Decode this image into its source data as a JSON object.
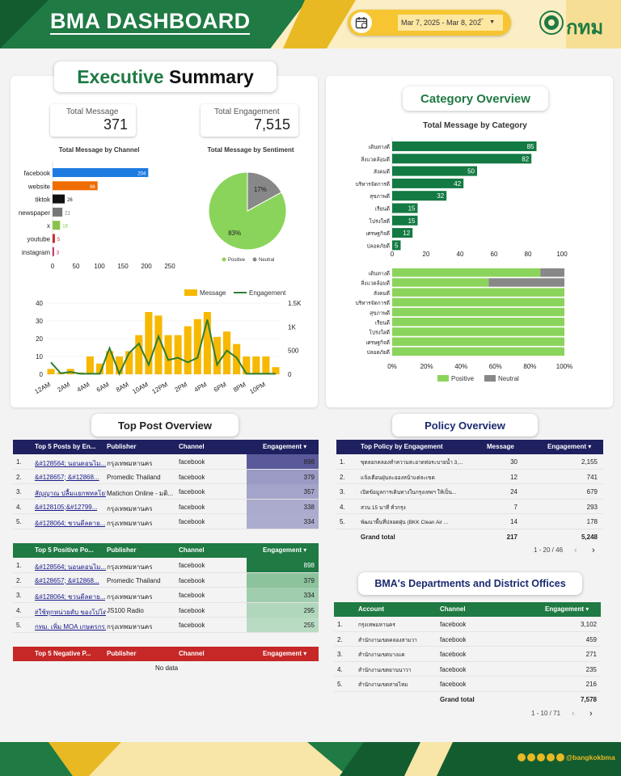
{
  "header": {
    "title": "BMA DASHBOARD",
    "date_range": "Mar 7, 2025 - Mar 8, 202̅",
    "logo_text": "กทม"
  },
  "footer": {
    "handle": "@bangkokbma"
  },
  "executive": {
    "title_part1": "Executive",
    "title_part2": "Summary",
    "total_message_label": "Total Message",
    "total_message_value": "371",
    "total_engagement_label": "Total Engagement",
    "total_engagement_value": "7,515",
    "channel_title": "Total Message by Channel",
    "sentiment_title": "Total Message by Sentiment",
    "legend_positive": "Positive",
    "legend_neutral": "Neutral",
    "legend_message": "Message",
    "legend_engagement": "Engagement"
  },
  "category": {
    "title": "Category Overview",
    "subtitle": "Total Message by Category",
    "legend_positive": "Positive",
    "legend_neutral": "Neutral"
  },
  "chart_data": [
    {
      "type": "bar",
      "orientation": "horizontal",
      "title": "Total Message by Channel",
      "categories": [
        "facebook",
        "website",
        "tiktok",
        "newspaper",
        "x",
        "youtube",
        "instagram"
      ],
      "values": [
        204,
        96,
        26,
        21,
        16,
        5,
        3
      ],
      "colors": [
        "#1e7be0",
        "#ef6c00",
        "#111111",
        "#777777",
        "#8bc34a",
        "#c62828",
        "#c2185b"
      ],
      "xlim": [
        0,
        250
      ],
      "xticks": [
        "0",
        "50",
        "100",
        "150",
        "200",
        "250"
      ]
    },
    {
      "type": "pie",
      "title": "Total Message by Sentiment",
      "categories": [
        "Positive",
        "Neutral"
      ],
      "values": [
        83,
        17
      ],
      "colors": [
        "#8bd45b",
        "#888888"
      ]
    },
    {
      "type": "bar",
      "subtype": "combo",
      "title": "",
      "categories": [
        "12AM",
        "1AM",
        "2AM",
        "3AM",
        "4AM",
        "5AM",
        "6AM",
        "7AM",
        "8AM",
        "9AM",
        "10AM",
        "11AM",
        "12PM",
        "1PM",
        "2PM",
        "3PM",
        "4PM",
        "5PM",
        "6PM",
        "7PM",
        "8PM",
        "9PM",
        "10PM",
        "11PM"
      ],
      "x_tick_labels": [
        "12AM",
        "2AM",
        "4AM",
        "6AM",
        "8AM",
        "10AM",
        "12PM",
        "2PM",
        "4PM",
        "6PM",
        "8PM",
        "10PM"
      ],
      "series": [
        {
          "name": "Message",
          "type": "bar",
          "axis": "left",
          "values": [
            3,
            1,
            3,
            1,
            10,
            6,
            13,
            10,
            13,
            22,
            35,
            33,
            22,
            22,
            27,
            31,
            35,
            21,
            24,
            17,
            10,
            10,
            10,
            4
          ]
        },
        {
          "name": "Engagement",
          "type": "line",
          "axis": "right",
          "values": [
            250,
            20,
            50,
            10,
            10,
            10,
            550,
            10,
            450,
            650,
            200,
            800,
            300,
            350,
            250,
            350,
            1150,
            200,
            500,
            350,
            10,
            10,
            10,
            10
          ]
        }
      ],
      "ylim_left": [
        0,
        40
      ],
      "yticks_left": [
        "0",
        "10",
        "20",
        "30",
        "40"
      ],
      "ylim_right": [
        0,
        1500
      ],
      "yticks_right": [
        "0",
        "500",
        "1K",
        "1.5K"
      ],
      "colors": {
        "Message": "#f7b800",
        "Engagement": "#2e7d32"
      }
    },
    {
      "type": "bar",
      "orientation": "horizontal",
      "title": "Total Message by Category",
      "categories": [
        "เดินทางดี",
        "สิ่งแวดล้อมดี",
        "สังคมดี",
        "บริหารจัดการดี",
        "สุขภาพดี",
        "เรียนดี",
        "โปร่งใสดี",
        "เศรษฐกิจดี",
        "ปลอดภัยดี"
      ],
      "values": [
        85,
        82,
        50,
        42,
        32,
        15,
        15,
        12,
        5
      ],
      "xlim": [
        0,
        100
      ],
      "xticks": [
        "0",
        "20",
        "40",
        "60",
        "80",
        "100"
      ],
      "color": "#137a43"
    },
    {
      "type": "bar",
      "orientation": "horizontal",
      "stacked": "percent",
      "title": "",
      "categories": [
        "เดินทางดี",
        "สิ่งแวดล้อมดี",
        "สังคมดี",
        "บริหารจัดการดี",
        "สุขภาพดี",
        "เรียนดี",
        "โปร่งใสดี",
        "เศรษฐกิจดี",
        "ปลอดภัยดี"
      ],
      "series": [
        {
          "name": "Positive",
          "values": [
            86,
            56,
            100,
            100,
            100,
            100,
            100,
            100,
            100
          ]
        },
        {
          "name": "Neutral",
          "values": [
            14,
            44,
            0,
            0,
            0,
            0,
            0,
            0,
            0
          ]
        }
      ],
      "xticks": [
        "0%",
        "20%",
        "40%",
        "60%",
        "80%",
        "100%"
      ],
      "colors": {
        "Positive": "#8bd45b",
        "Neutral": "#888888"
      }
    }
  ],
  "top_post": {
    "title": "Top Post Overview",
    "top5_posts": {
      "headers": [
        "Top 5 Posts by En...",
        "Publisher",
        "Channel",
        "Engagement ▾"
      ],
      "rows": [
        {
          "n": "1.",
          "post": "&#128564; นอนดอนไม...",
          "pub": "กรุงเทพมหานคร",
          "ch": "facebook",
          "eng": "898"
        },
        {
          "n": "2.",
          "post": "&#128657; &#12868...",
          "pub": "Promedic Thailand",
          "ch": "facebook",
          "eng": "379"
        },
        {
          "n": "3.",
          "post": "สัญญาณ ปลื้มแยกพหลโยธิ...",
          "pub": "Matichon Online - มติ...",
          "ch": "facebook",
          "eng": "357"
        },
        {
          "n": "4.",
          "post": "&#128105;&#12799...",
          "pub": "กรุงเทพมหานคร",
          "ch": "facebook",
          "eng": "338"
        },
        {
          "n": "5.",
          "post": "&#128064; ชวนดีลดาย...",
          "pub": "กรุงเทพมหานคร",
          "ch": "facebook",
          "eng": "334"
        }
      ]
    },
    "top5_positive": {
      "headers": [
        "Top 5 Positive Po...",
        "Publisher",
        "Channel",
        "Engagement ▾"
      ],
      "rows": [
        {
          "n": "1.",
          "post": "&#128564; นอนดอนไม...",
          "pub": "กรุงเทพมหานคร",
          "ch": "facebook",
          "eng": "898"
        },
        {
          "n": "2.",
          "post": "&#128657; &#12868...",
          "pub": "Promedic Thailand",
          "ch": "facebook",
          "eng": "379"
        },
        {
          "n": "3.",
          "post": "&#128064; ชวนดีลดาย...",
          "pub": "กรุงเทพมหานคร",
          "ch": "facebook",
          "eng": "334"
        },
        {
          "n": "4.",
          "post": "#ใช้ทุกหน่วยดับ ของโปโด่ง...",
          "pub": "JS100 Radio",
          "ch": "facebook",
          "eng": "295"
        },
        {
          "n": "5.",
          "post": "กทม. เพิ่ม MOA เกษตรกร...",
          "pub": "กรุงเทพมหานคร",
          "ch": "facebook",
          "eng": "255"
        }
      ]
    },
    "top5_negative": {
      "headers": [
        "Top 5 Negative P...",
        "Publisher",
        "Channel",
        "Engagement ▾"
      ],
      "empty": "No data"
    }
  },
  "policy": {
    "title": "Policy Overview",
    "headers": [
      "Top Policy by Engagement",
      "Message",
      "Engagement ▾"
    ],
    "rows": [
      {
        "n": "1.",
        "name": "ขุดลอกคลองทำความสะอาดท่อระบายน้ำ 3,...",
        "msg": "30",
        "eng": "2,155"
      },
      {
        "n": "2.",
        "name": "แจ้งเตือนฝุ่นละอองหน้าแต่ละเขต",
        "msg": "12",
        "eng": "741"
      },
      {
        "n": "3.",
        "name": "เปิดข้อมูลการเดินทางในกรุงเทพฯ ให้เป็น...",
        "msg": "24",
        "eng": "679"
      },
      {
        "n": "4.",
        "name": "สวน 15 นาที ทั่วกรุง",
        "msg": "7",
        "eng": "293"
      },
      {
        "n": "5.",
        "name": "พัฒนาพื้นที่ปลอดฝุ่น (BKK Clean Air ...",
        "msg": "14",
        "eng": "178"
      }
    ],
    "grand_total_label": "Grand total",
    "grand_total_msg": "217",
    "grand_total_eng": "5,248",
    "pagination": "1 - 20 / 46"
  },
  "departments": {
    "title": "BMA's Departments and District Offices",
    "headers": [
      "Account",
      "Channel",
      "Engagement ▾"
    ],
    "rows": [
      {
        "n": "1.",
        "acc": "กรุงเทพมหานคร",
        "ch": "facebook",
        "eng": "3,102"
      },
      {
        "n": "2.",
        "acc": "สำนักงานเขตคลองสามวา",
        "ch": "facebook",
        "eng": "459"
      },
      {
        "n": "3.",
        "acc": "สำนักงานเขตบางแค",
        "ch": "facebook",
        "eng": "271"
      },
      {
        "n": "4.",
        "acc": "สำนักงานเขตยานนาวา",
        "ch": "facebook",
        "eng": "235"
      },
      {
        "n": "5.",
        "acc": "สำนักงานเขตสายไหม",
        "ch": "facebook",
        "eng": "216"
      }
    ],
    "grand_total_label": "Grand total",
    "grand_total_eng": "7,578",
    "pagination": "1 - 10 / 71"
  }
}
